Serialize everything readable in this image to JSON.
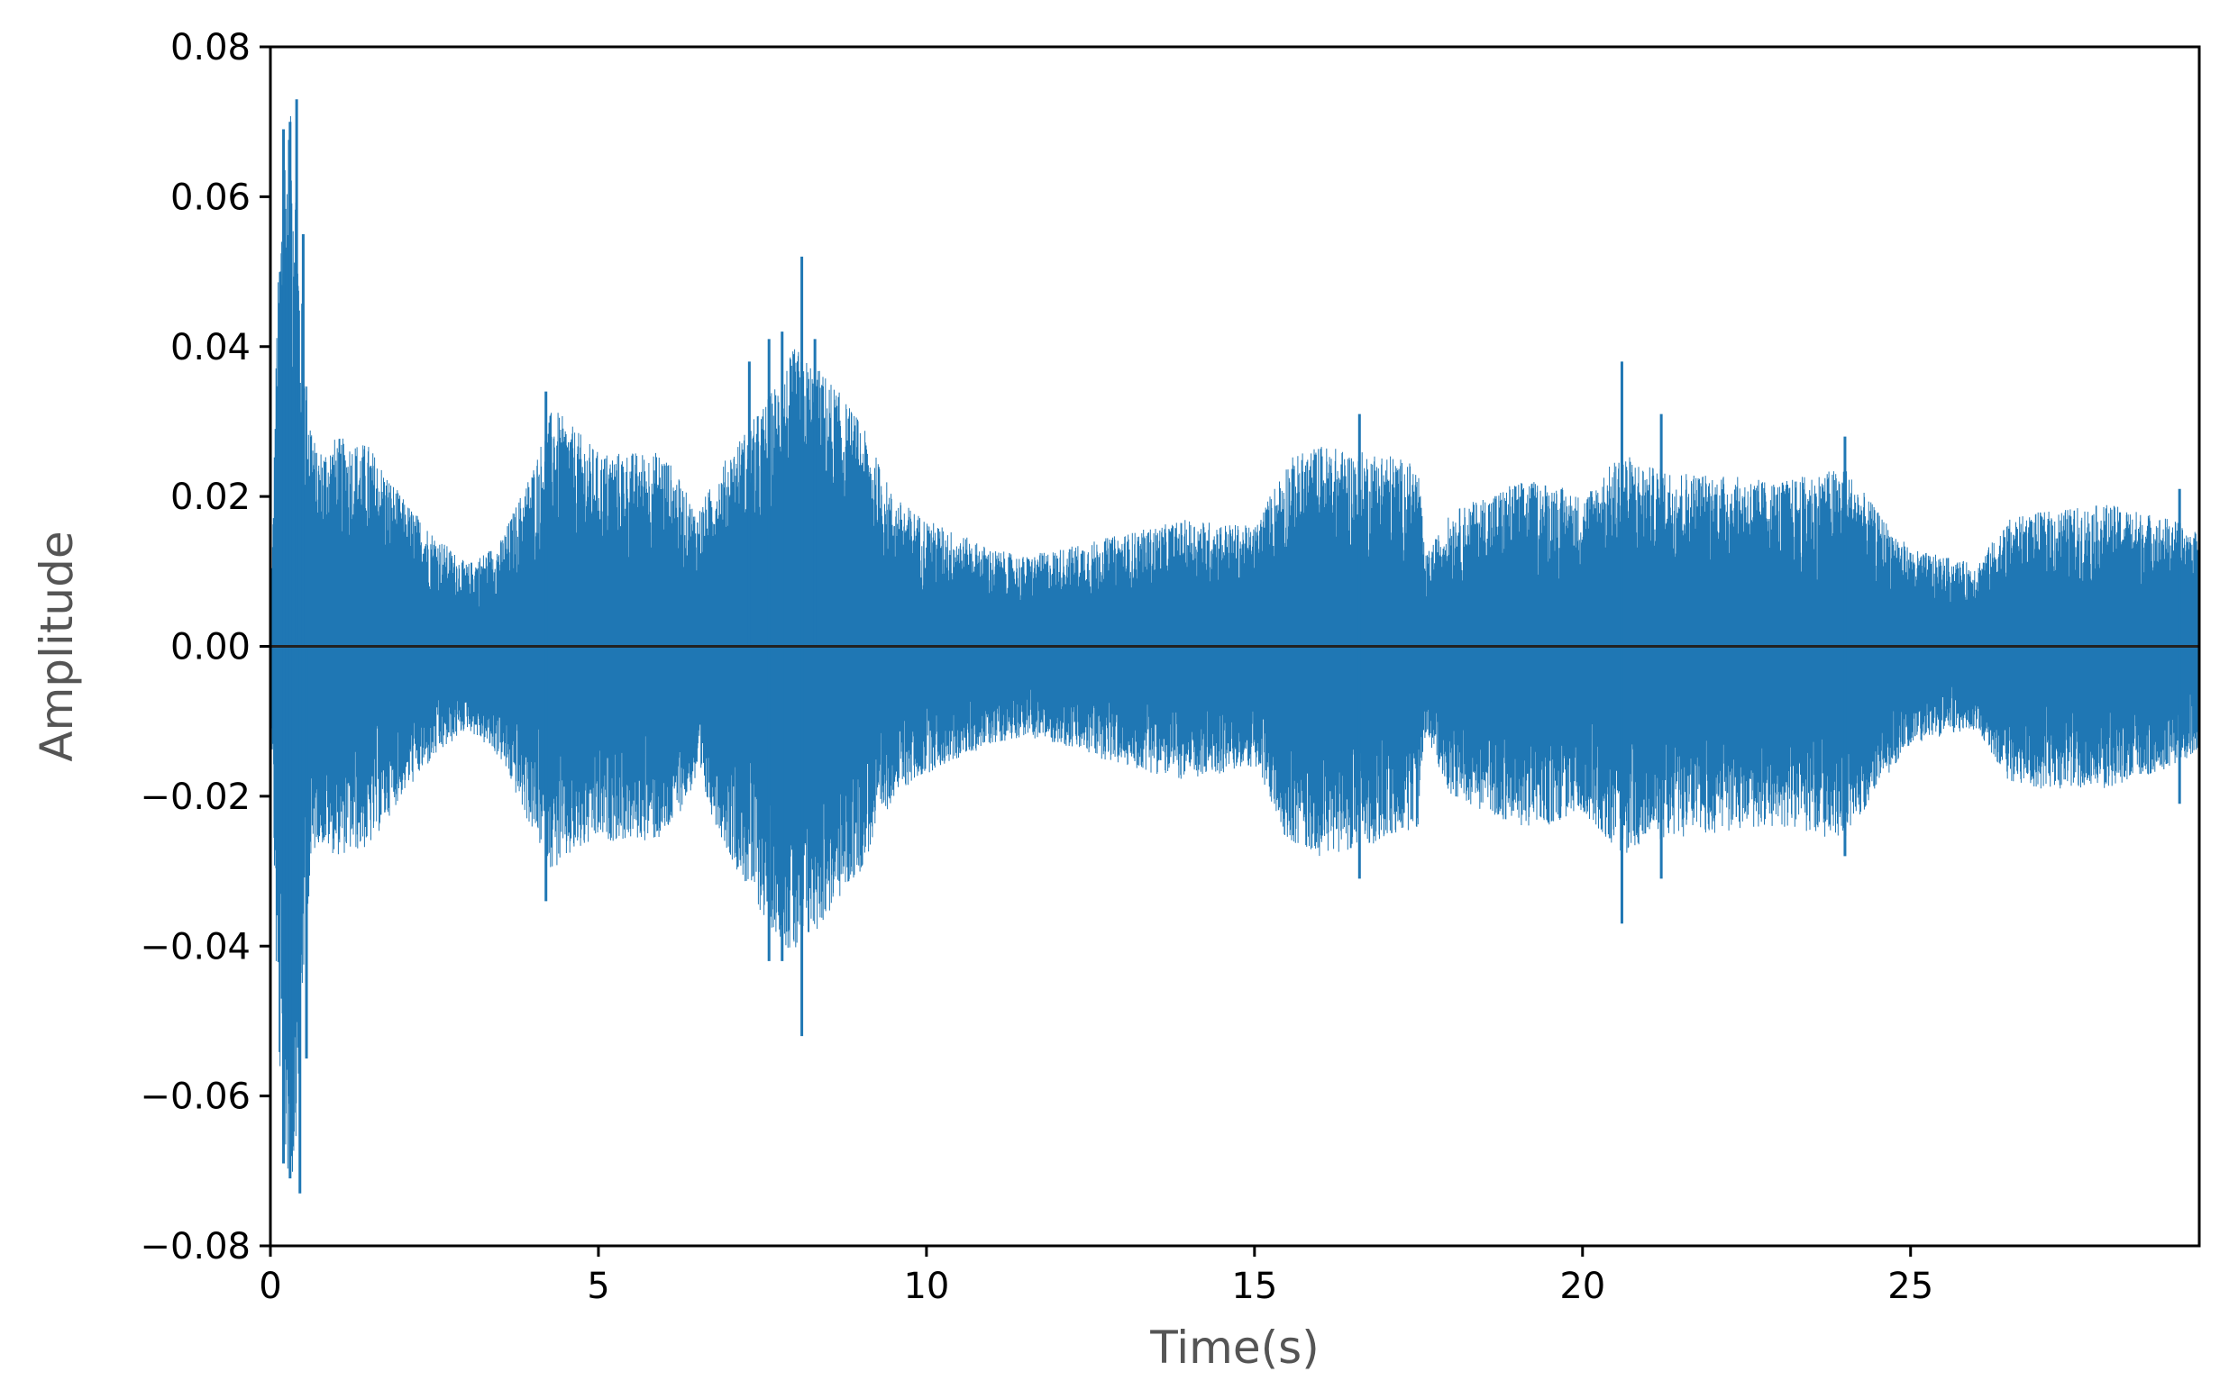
{
  "chart_data": {
    "type": "line",
    "title": "",
    "xlabel": "Time(s)",
    "ylabel": "Amplitude",
    "xlim": [
      0,
      29.4
    ],
    "ylim": [
      -0.08,
      0.08
    ],
    "x_ticks": [
      0,
      5,
      10,
      15,
      20,
      25
    ],
    "x_tick_labels": [
      "0",
      "5",
      "10",
      "15",
      "20",
      "25"
    ],
    "y_ticks": [
      -0.08,
      -0.06,
      -0.04,
      -0.02,
      0.0,
      0.02,
      0.04,
      0.06,
      0.08
    ],
    "y_tick_labels": [
      "−0.08",
      "−0.06",
      "−0.04",
      "−0.02",
      "0.00",
      "0.02",
      "0.04",
      "0.06",
      "0.08"
    ],
    "grid": false,
    "legend": "none",
    "series": [
      {
        "color": "#1f77b4",
        "envelope": {
          "t": [
            0.0,
            0.1,
            0.2,
            0.35,
            0.45,
            0.55,
            0.7,
            1.0,
            1.5,
            2.0,
            2.5,
            3.0,
            3.5,
            4.0,
            4.3,
            5.0,
            6.0,
            6.5,
            7.0,
            7.5,
            8.0,
            8.5,
            9.0,
            9.5,
            10.0,
            10.5,
            11.0,
            11.5,
            12.0,
            13.0,
            14.0,
            15.0,
            15.5,
            16.0,
            16.5,
            17.0,
            17.5,
            17.6,
            18.0,
            19.0,
            19.5,
            20.0,
            20.6,
            21.0,
            22.0,
            23.0,
            24.0,
            24.5,
            25.0,
            25.5,
            26.0,
            26.5,
            27.0,
            28.0,
            29.0,
            29.4
          ],
          "amp_pos": [
            0.0,
            0.045,
            0.068,
            0.072,
            0.05,
            0.036,
            0.026,
            0.028,
            0.027,
            0.02,
            0.015,
            0.011,
            0.014,
            0.024,
            0.032,
            0.026,
            0.026,
            0.018,
            0.026,
            0.032,
            0.04,
            0.036,
            0.03,
            0.02,
            0.017,
            0.015,
            0.013,
            0.012,
            0.013,
            0.015,
            0.017,
            0.016,
            0.025,
            0.027,
            0.026,
            0.026,
            0.024,
            0.012,
            0.018,
            0.022,
            0.022,
            0.02,
            0.026,
            0.024,
            0.023,
            0.022,
            0.024,
            0.018,
            0.013,
            0.012,
            0.011,
            0.017,
            0.018,
            0.019,
            0.017,
            0.015
          ],
          "amp_neg": [
            0.0,
            0.05,
            0.07,
            0.072,
            0.055,
            0.036,
            0.026,
            0.028,
            0.027,
            0.02,
            0.015,
            0.011,
            0.015,
            0.025,
            0.03,
            0.026,
            0.026,
            0.018,
            0.028,
            0.036,
            0.042,
            0.036,
            0.03,
            0.02,
            0.017,
            0.015,
            0.013,
            0.012,
            0.013,
            0.016,
            0.018,
            0.016,
            0.026,
            0.028,
            0.027,
            0.026,
            0.024,
            0.012,
            0.02,
            0.024,
            0.024,
            0.022,
            0.028,
            0.026,
            0.025,
            0.024,
            0.026,
            0.019,
            0.013,
            0.012,
            0.011,
            0.018,
            0.019,
            0.019,
            0.016,
            0.014
          ]
        },
        "spikes": [
          {
            "t": 0.2,
            "y": 0.069
          },
          {
            "t": 0.3,
            "y": 0.07
          },
          {
            "t": 0.4,
            "y": 0.073
          },
          {
            "t": 0.5,
            "y": 0.055
          },
          {
            "t": 0.2,
            "y": -0.069
          },
          {
            "t": 0.3,
            "y": -0.071
          },
          {
            "t": 0.45,
            "y": -0.073
          },
          {
            "t": 0.55,
            "y": -0.055
          },
          {
            "t": 4.2,
            "y": 0.034
          },
          {
            "t": 4.2,
            "y": -0.034
          },
          {
            "t": 7.3,
            "y": 0.038
          },
          {
            "t": 7.6,
            "y": 0.041
          },
          {
            "t": 7.8,
            "y": 0.042
          },
          {
            "t": 8.1,
            "y": 0.052
          },
          {
            "t": 8.3,
            "y": 0.041
          },
          {
            "t": 8.1,
            "y": -0.052
          },
          {
            "t": 7.6,
            "y": -0.042
          },
          {
            "t": 7.8,
            "y": -0.042
          },
          {
            "t": 16.6,
            "y": 0.031
          },
          {
            "t": 16.6,
            "y": -0.031
          },
          {
            "t": 20.6,
            "y": 0.038
          },
          {
            "t": 20.6,
            "y": -0.037
          },
          {
            "t": 21.2,
            "y": 0.031
          },
          {
            "t": 21.2,
            "y": -0.031
          },
          {
            "t": 24.0,
            "y": 0.028
          },
          {
            "t": 24.0,
            "y": -0.028
          },
          {
            "t": 29.1,
            "y": 0.021
          },
          {
            "t": 29.1,
            "y": -0.021
          }
        ]
      }
    ]
  }
}
